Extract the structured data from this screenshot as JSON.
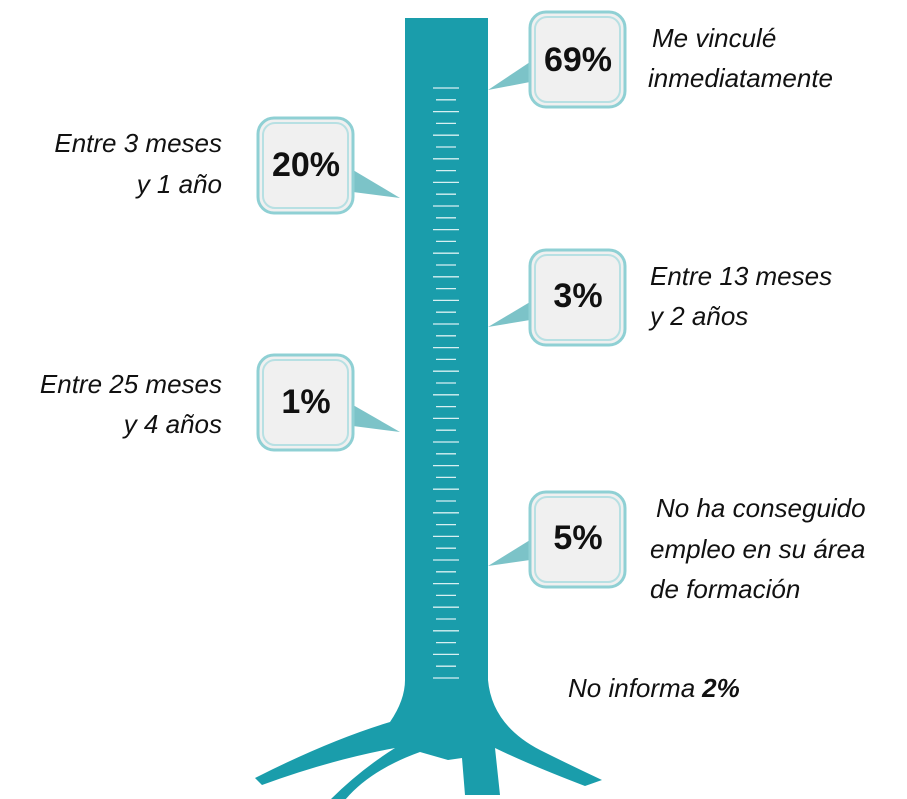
{
  "callouts": [
    {
      "value": "69%",
      "lines": [
        "Me vinculé",
        "inmediatamente"
      ]
    },
    {
      "value": "20%",
      "lines": [
        "Entre 3 meses",
        "y 1 año"
      ]
    },
    {
      "value": "3%",
      "lines": [
        "Entre 13 meses",
        "y 2 años"
      ]
    },
    {
      "value": "1%",
      "lines": [
        "Entre 25 meses",
        "y 4 años"
      ]
    },
    {
      "value": "5%",
      "lines": [
        "No ha conseguido",
        "empleo en su área",
        "de formación"
      ]
    }
  ],
  "footnote": {
    "label": "No informa",
    "value": "2%"
  }
}
